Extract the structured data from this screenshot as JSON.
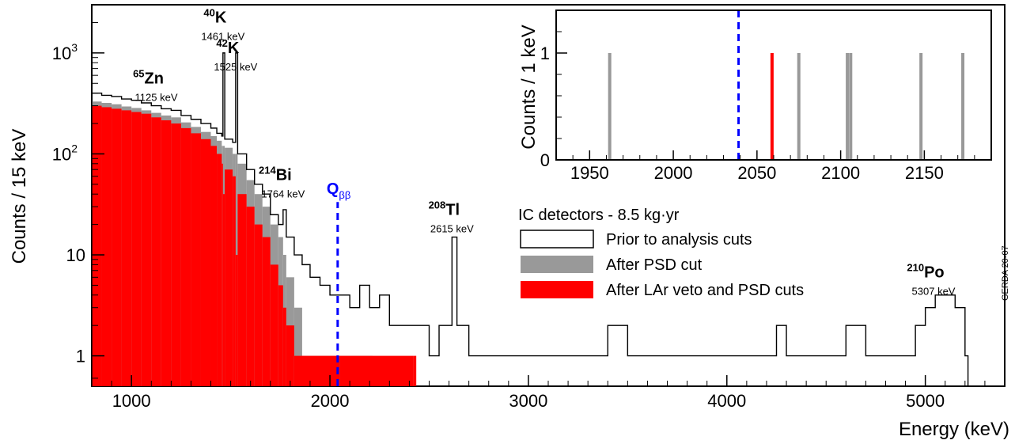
{
  "chart_data": {
    "type": "bar",
    "main": {
      "xlabel": "Energy (keV)",
      "ylabel": "Counts / 15 keV",
      "xlim": [
        800,
        5400
      ],
      "ylim": [
        0.5,
        3000
      ],
      "yscale": "log",
      "xticks": [
        1000,
        2000,
        3000,
        4000,
        5000
      ],
      "yticks": [
        {
          "value": 1,
          "label": "1"
        },
        {
          "value": 10,
          "label": "10"
        },
        {
          "value": 100,
          "label": "10",
          "sup": "2"
        },
        {
          "value": 1000,
          "label": "10",
          "sup": "3"
        }
      ],
      "grid": false,
      "series": [
        {
          "name": "Prior to analysis cuts",
          "style": "step-outline",
          "color": "#000000",
          "points": [
            [
              800,
              400
            ],
            [
              850,
              380
            ],
            [
              900,
              370
            ],
            [
              950,
              350
            ],
            [
              1000,
              340
            ],
            [
              1050,
              320
            ],
            [
              1100,
              300
            ],
            [
              1150,
              280
            ],
            [
              1200,
              270
            ],
            [
              1250,
              240
            ],
            [
              1300,
              220
            ],
            [
              1350,
              200
            ],
            [
              1400,
              180
            ],
            [
              1430,
              160
            ],
            [
              1455,
              150
            ],
            [
              1461,
              1000
            ],
            [
              1470,
              140
            ],
            [
              1510,
              130
            ],
            [
              1525,
              1000
            ],
            [
              1535,
              100
            ],
            [
              1580,
              70
            ],
            [
              1620,
              50
            ],
            [
              1660,
              40
            ],
            [
              1700,
              25
            ],
            [
              1740,
              20
            ],
            [
              1764,
              28
            ],
            [
              1780,
              15
            ],
            [
              1820,
              10
            ],
            [
              1860,
              8
            ],
            [
              1900,
              6
            ],
            [
              1950,
              5
            ],
            [
              2000,
              4
            ],
            [
              2100,
              3
            ],
            [
              2150,
              5
            ],
            [
              2200,
              3
            ],
            [
              2250,
              4
            ],
            [
              2300,
              2
            ],
            [
              2350,
              2
            ],
            [
              2400,
              2
            ],
            [
              2500,
              1
            ],
            [
              2550,
              2
            ],
            [
              2600,
              2
            ],
            [
              2615,
              15
            ],
            [
              2640,
              2
            ],
            [
              2700,
              1
            ],
            [
              2800,
              1
            ],
            [
              2900,
              1
            ],
            [
              3000,
              1
            ],
            [
              3100,
              1
            ],
            [
              3200,
              1
            ],
            [
              3300,
              1
            ],
            [
              3400,
              2
            ],
            [
              3500,
              1
            ],
            [
              3600,
              1
            ],
            [
              3700,
              1
            ],
            [
              3800,
              1
            ],
            [
              3900,
              1
            ],
            [
              4000,
              1
            ],
            [
              4100,
              1
            ],
            [
              4200,
              1
            ],
            [
              4250,
              2
            ],
            [
              4300,
              1
            ],
            [
              4400,
              1
            ],
            [
              4500,
              1
            ],
            [
              4600,
              2
            ],
            [
              4700,
              1
            ],
            [
              4800,
              1
            ],
            [
              4900,
              1
            ],
            [
              4950,
              2
            ],
            [
              5000,
              3
            ],
            [
              5050,
              4
            ],
            [
              5100,
              4
            ],
            [
              5150,
              3
            ],
            [
              5200,
              1
            ]
          ]
        },
        {
          "name": "After PSD cut",
          "style": "filled",
          "color": "#999999",
          "points": [
            [
              800,
              330
            ],
            [
              850,
              320
            ],
            [
              900,
              310
            ],
            [
              950,
              295
            ],
            [
              1000,
              285
            ],
            [
              1050,
              270
            ],
            [
              1100,
              255
            ],
            [
              1150,
              240
            ],
            [
              1200,
              230
            ],
            [
              1250,
              205
            ],
            [
              1300,
              185
            ],
            [
              1350,
              165
            ],
            [
              1400,
              150
            ],
            [
              1430,
              135
            ],
            [
              1455,
              120
            ],
            [
              1461,
              120
            ],
            [
              1470,
              115
            ],
            [
              1510,
              100
            ],
            [
              1525,
              100
            ],
            [
              1535,
              80
            ],
            [
              1580,
              55
            ],
            [
              1620,
              40
            ],
            [
              1660,
              30
            ],
            [
              1700,
              20
            ],
            [
              1740,
              15
            ],
            [
              1764,
              10
            ],
            [
              1780,
              6
            ],
            [
              1820,
              3
            ],
            [
              1860,
              1
            ],
            [
              1900,
              1
            ],
            [
              2050,
              1
            ],
            [
              2100,
              1
            ],
            [
              2150,
              1
            ],
            [
              2200,
              1
            ]
          ]
        },
        {
          "name": "After LAr veto and PSD cuts",
          "style": "filled",
          "color": "#ff0000",
          "points": [
            [
              800,
              300
            ],
            [
              850,
              290
            ],
            [
              900,
              280
            ],
            [
              950,
              270
            ],
            [
              1000,
              260
            ],
            [
              1050,
              250
            ],
            [
              1100,
              230
            ],
            [
              1150,
              215
            ],
            [
              1200,
              200
            ],
            [
              1250,
              180
            ],
            [
              1300,
              160
            ],
            [
              1350,
              140
            ],
            [
              1400,
              120
            ],
            [
              1430,
              100
            ],
            [
              1455,
              80
            ],
            [
              1461,
              40
            ],
            [
              1470,
              70
            ],
            [
              1510,
              60
            ],
            [
              1525,
              10
            ],
            [
              1535,
              40
            ],
            [
              1580,
              30
            ],
            [
              1620,
              20
            ],
            [
              1660,
              15
            ],
            [
              1700,
              8
            ],
            [
              1740,
              5
            ],
            [
              1764,
              3
            ],
            [
              1780,
              2
            ],
            [
              1820,
              1
            ],
            [
              2050,
              1
            ],
            [
              2420,
              1
            ]
          ]
        }
      ],
      "qbb": {
        "label": "Q",
        "sub": "ββ",
        "x": 2039,
        "color": "#0000ff"
      },
      "annotations": [
        {
          "iso": "65",
          "el": "Zn",
          "energy": "1125 keV",
          "x": 1125,
          "y": 500
        },
        {
          "iso": "40",
          "el": "K",
          "energy": "1461 keV",
          "x": 1461,
          "y": 2000
        },
        {
          "iso": "42",
          "el": "K",
          "energy": "1525 keV",
          "x": 1525,
          "y": 1000
        },
        {
          "iso": "214",
          "el": "Bi",
          "energy": "1764 keV",
          "x": 1764,
          "y": 55
        },
        {
          "iso": "208",
          "el": "Tl",
          "energy": "2615 keV",
          "x": 2615,
          "y": 25
        },
        {
          "iso": "210",
          "el": "Po",
          "energy": "5307 keV",
          "x": 5307,
          "y": 6
        }
      ]
    },
    "inset": {
      "ylabel": "Counts / 1 keV",
      "xlim": [
        1930,
        2190
      ],
      "ylim": [
        0,
        1.4
      ],
      "xticks": [
        1950,
        2000,
        2050,
        2100,
        2150
      ],
      "yticks": [
        0,
        1
      ],
      "qbb_x": 2039,
      "events": [
        {
          "x": 1962,
          "color": "#999999"
        },
        {
          "x": 2059,
          "color": "#ff0000"
        },
        {
          "x": 2075,
          "color": "#999999"
        },
        {
          "x": 2104,
          "color": "#999999"
        },
        {
          "x": 2106,
          "color": "#999999"
        },
        {
          "x": 2148,
          "color": "#999999"
        },
        {
          "x": 2173,
          "color": "#999999"
        }
      ]
    },
    "legend": {
      "title": "IC detectors - 8.5 kg·yr",
      "placement": "right"
    },
    "tag": "GERDA 20-07"
  }
}
